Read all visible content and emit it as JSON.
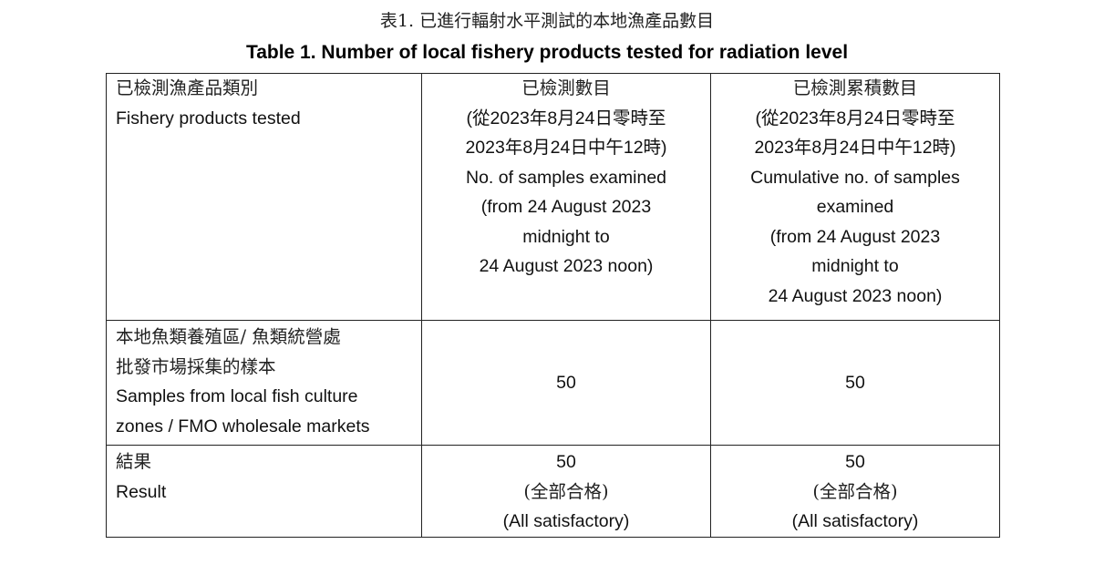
{
  "title_zh": "表1.  已進行輻射水平測試的本地漁產品數目",
  "title_en": "Table 1. Number of local fishery products tested for radiation level",
  "header": {
    "col1": [
      "已檢測漁產品類別",
      "Fishery products tested"
    ],
    "col2": [
      "已檢測數目",
      "(從2023年8月24日零時至",
      "2023年8月24日中午12時)",
      "No. of samples examined",
      "(from 24 August 2023",
      "midnight to",
      "24 August 2023 noon)"
    ],
    "col3": [
      "已檢測累積數目",
      "(從2023年8月24日零時至",
      "2023年8月24日中午12時)",
      "Cumulative no. of samples",
      "examined",
      "(from 24 August 2023",
      "midnight to",
      "24 August 2023 noon)"
    ]
  },
  "rows": [
    {
      "label": [
        "本地魚類養殖區/  魚類統營處",
        "批發市場採集的樣本",
        "Samples from local fish culture",
        "zones / FMO wholesale markets"
      ],
      "col2": [
        "50"
      ],
      "col3": [
        "50"
      ]
    },
    {
      "label": [
        "結果",
        "Result"
      ],
      "col2": [
        "50",
        "(全部合格)",
        "(All satisfactory)"
      ],
      "col3": [
        "50",
        "(全部合格)",
        "(All satisfactory)"
      ]
    }
  ]
}
